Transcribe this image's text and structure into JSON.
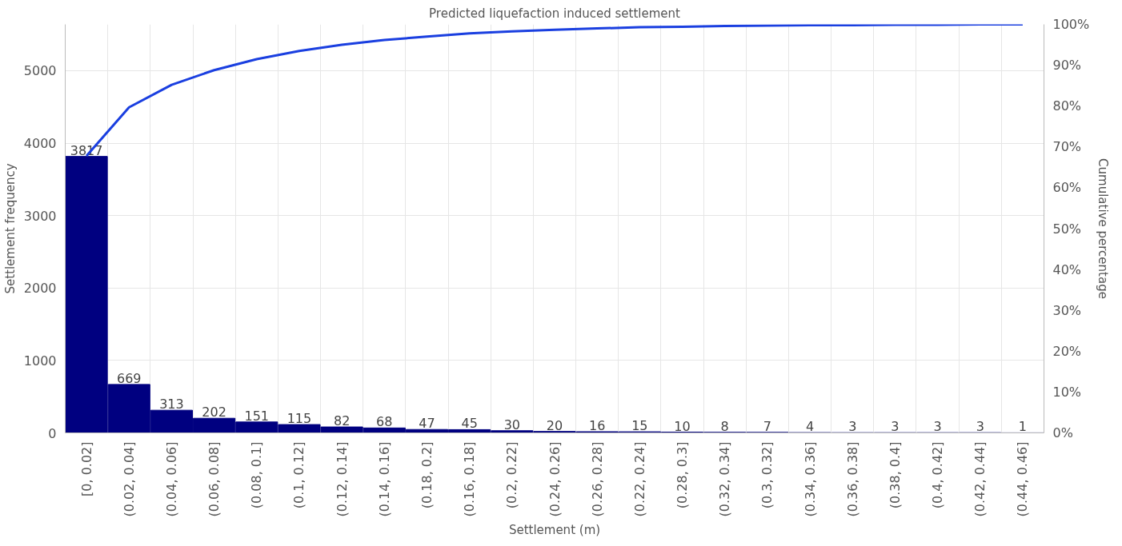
{
  "chart_data": {
    "type": "bar",
    "title": "Predicted liquefaction induced settlement",
    "xlabel": "Settlement (m)",
    "ylabel": "Settlement frequency",
    "y2label": "Cumulative percentage",
    "categories": [
      "[0, 0.02]",
      "(0.02, 0.04]",
      "(0.04, 0.06]",
      "(0.06, 0.08]",
      "(0.08, 0.1]",
      "(0.1, 0.12]",
      "(0.12, 0.14]",
      "(0.14, 0.16]",
      "(0.18, 0.2]",
      "(0.16, 0.18]",
      "(0.2, 0.22]",
      "(0.24, 0.26]",
      "(0.26, 0.28]",
      "(0.22, 0.24]",
      "(0.28, 0.3]",
      "(0.32, 0.34]",
      "(0.3, 0.32]",
      "(0.34, 0.36]",
      "(0.36, 0.38]",
      "(0.38, 0.4]",
      "(0.4, 0.42]",
      "(0.42, 0.44]",
      "(0.44, 0.46]"
    ],
    "series": [
      {
        "color": "#000080",
        "values": [
          3817,
          669,
          313,
          202,
          151,
          115,
          82,
          68,
          47,
          45,
          30,
          20,
          16,
          15,
          10,
          8,
          7,
          4,
          3,
          3,
          3,
          3,
          1
        ],
        "value_labels": [
          "3817",
          "669",
          "313",
          "202",
          "151",
          "115",
          "82",
          "68",
          "47",
          "45",
          "30",
          "20",
          "16",
          "15",
          "10",
          "8",
          "7",
          "4",
          "3",
          "3",
          "3",
          "3",
          "1"
        ]
      },
      {
        "type": "line",
        "axis": "y2",
        "color": "#1a3fe0",
        "values": [
          67.8,
          79.7,
          85.2,
          88.8,
          91.5,
          93.5,
          95.0,
          96.2,
          97.0,
          97.8,
          98.3,
          98.7,
          99.0,
          99.3,
          99.4,
          99.6,
          99.7,
          99.8,
          99.8,
          99.9,
          99.9,
          100,
          100
        ]
      }
    ],
    "ylim": [
      0,
      5640
    ],
    "yticks": [
      0,
      1000,
      2000,
      3000,
      4000,
      5000
    ],
    "y2lim": [
      0,
      100
    ],
    "y2ticks": [
      {
        "value": 0,
        "label": "0%"
      },
      {
        "value": 10,
        "label": "10%"
      },
      {
        "value": 20,
        "label": "20%"
      },
      {
        "value": 30,
        "label": "30%"
      },
      {
        "value": 40,
        "label": "40%"
      },
      {
        "value": 50,
        "label": "50%"
      },
      {
        "value": 60,
        "label": "60%"
      },
      {
        "value": 70,
        "label": "70%"
      },
      {
        "value": 80,
        "label": "80%"
      },
      {
        "value": 90,
        "label": "90%"
      },
      {
        "value": 100,
        "label": "100%"
      }
    ],
    "grid": true
  }
}
